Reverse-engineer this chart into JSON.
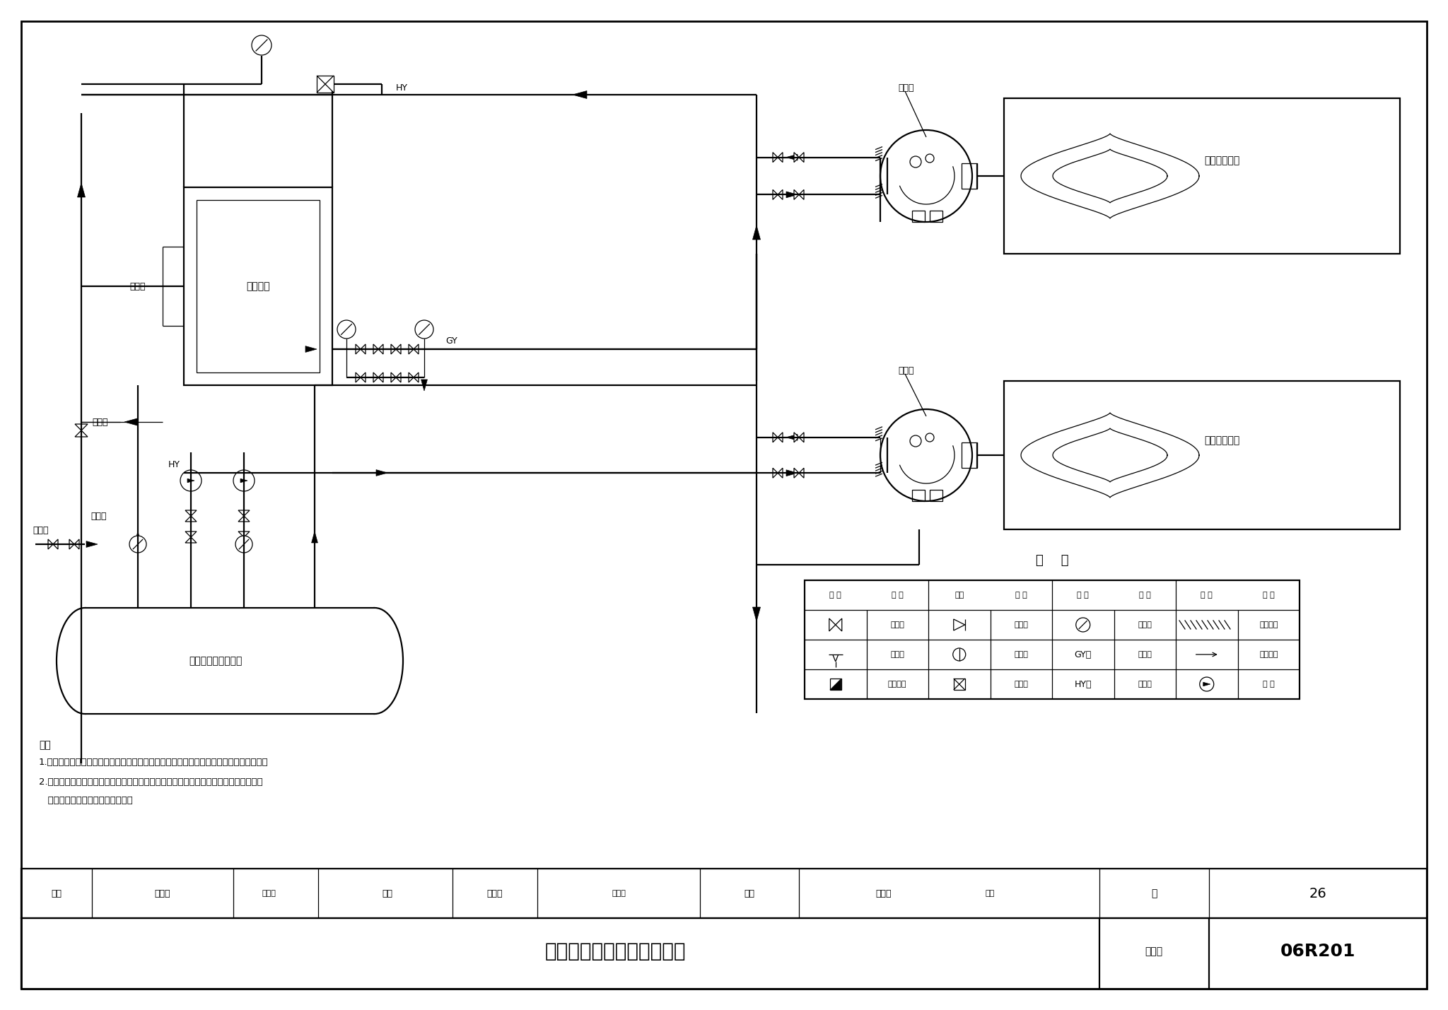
{
  "bg_color": "#ffffff",
  "line_color": "#000000",
  "title": "燃烧系统示意图（燃油型）",
  "atlas_label": "图集号",
  "atlas_number": "06R201",
  "page_label": "页",
  "page": "26",
  "review_label": "审核",
  "review_name": "罗荣华",
  "check_label": "校对",
  "check_name": "王关刚",
  "design_label": "设计",
  "design_name": "李春林",
  "notes": [
    "注：",
    "1.本图仅为燃油系统流程示意，在具体项目中应根据实际情况对本燃油系统进行相应调整。",
    "2.燃烧器以及满足直燃机燃烧系统正常运行、自动调节、安全保护等相关的辅机、控制系",
    "   统等一般由直燃机厂家配套供货。"
  ],
  "legend_title": "图    例",
  "label_daily_tank": "日用油箱",
  "label_storage_tank": "储油罐（地下直埋）",
  "label_level_gauge1": "液位计",
  "label_level_gauge2": "液位计",
  "label_drain": "排污管",
  "label_oil_inlet": "卸油口",
  "label_burner1": "燃烧器",
  "label_burner2": "燃烧器",
  "label_chamber1": "直燃机燃烧室",
  "label_chamber2": "直燃机燃烧室",
  "label_GY": "GY",
  "label_HY": "HY",
  "label_HY2": "HY",
  "legend_headers": [
    "符 号",
    "名 称",
    "符号",
    "名 称",
    "符 号",
    "名 称",
    "符 号",
    "名 称"
  ],
  "legend_row1_names": [
    "截止阀",
    "止回阀",
    "压力表",
    "设计分界"
  ],
  "legend_row2_names": [
    "过滤器",
    "呼吸阀",
    "供油管",
    "介质流向"
  ],
  "legend_row3_names": [
    "油流量表",
    "阻火器",
    "回油管",
    "油 泵"
  ],
  "legend_row2_sym": [
    "GY－",
    "—"
  ],
  "legend_row3_sym": [
    "HY－"
  ]
}
